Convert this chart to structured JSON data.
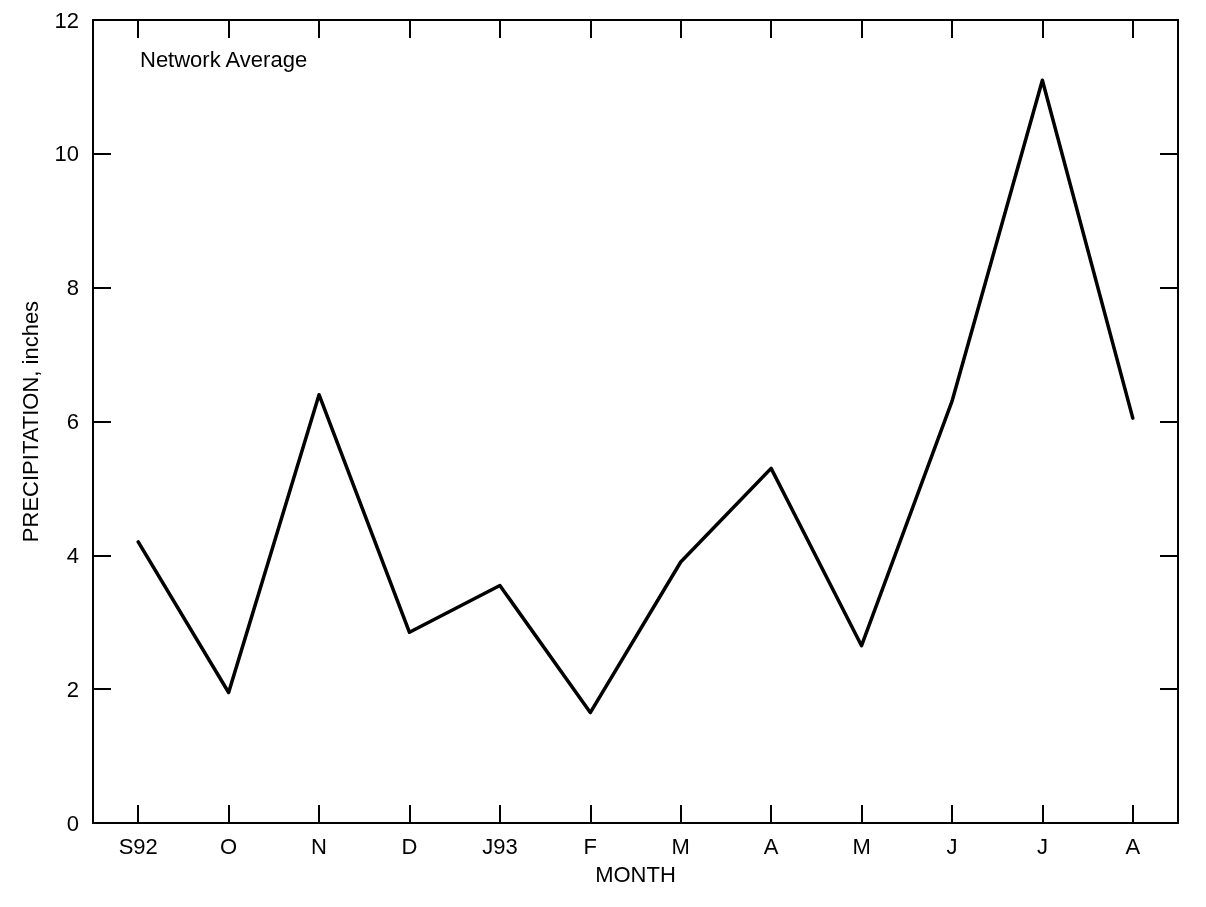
{
  "chart_data": {
    "type": "line",
    "xlabel": "MONTH",
    "ylabel": "PRECIPITATION, inches",
    "annotations": [
      "Network Average"
    ],
    "categories": [
      "S92",
      "O",
      "N",
      "D",
      "J93",
      "F",
      "M",
      "A",
      "M",
      "J",
      "J",
      "A"
    ],
    "series": [
      {
        "color": "#000000",
        "values": [
          4.2,
          1.95,
          6.4,
          2.85,
          3.55,
          1.65,
          3.9,
          5.3,
          2.65,
          6.3,
          11.1,
          6.05
        ]
      }
    ],
    "ylim": [
      0,
      12
    ],
    "yticks": [
      0,
      2,
      4,
      6,
      8,
      10,
      12
    ],
    "grid": false,
    "marker": "none",
    "line_style": "solid"
  }
}
